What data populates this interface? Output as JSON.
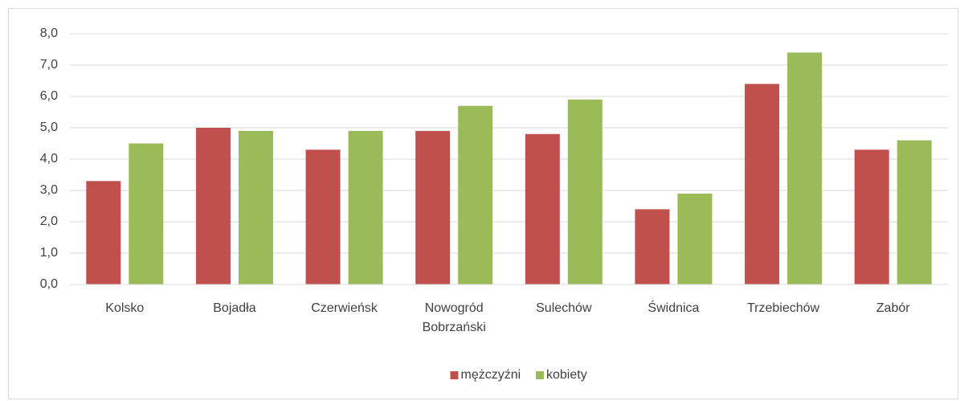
{
  "chart_data": {
    "type": "bar",
    "categories": [
      "Kolsko",
      "Bojadła",
      "Czerwieńsk",
      "Nowogród Bobrzański",
      "Sulechów",
      "Świdnica",
      "Trzebiechów",
      "Zabór"
    ],
    "series": [
      {
        "name": "mężczyźni",
        "color": "#c0504d",
        "values": [
          3.3,
          5.0,
          4.3,
          4.9,
          4.8,
          2.4,
          6.4,
          4.3
        ]
      },
      {
        "name": "kobiety",
        "color": "#9bbb59",
        "values": [
          4.5,
          4.9,
          4.9,
          5.7,
          5.9,
          2.9,
          7.4,
          4.6
        ]
      }
    ],
    "ylim": [
      0,
      8
    ],
    "yticks": [
      {
        "value": 0,
        "label": "0,0"
      },
      {
        "value": 1,
        "label": "1,0"
      },
      {
        "value": 2,
        "label": "2,0"
      },
      {
        "value": 3,
        "label": "3,0"
      },
      {
        "value": 4,
        "label": "4,0"
      },
      {
        "value": 5,
        "label": "5,0"
      },
      {
        "value": 6,
        "label": "6,0"
      },
      {
        "value": 7,
        "label": "7,0"
      },
      {
        "value": 8,
        "label": "8,0"
      }
    ],
    "grid": true,
    "legend": "bottom"
  }
}
